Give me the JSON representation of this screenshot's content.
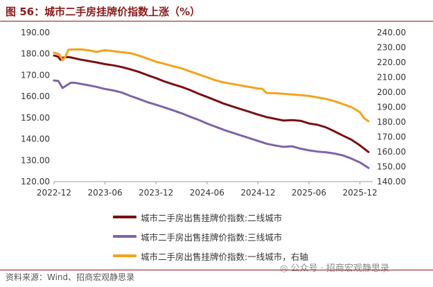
{
  "header": {
    "title": "图 56：城市二手房挂牌价指数上涨（%）"
  },
  "footer": {
    "source": "资料来源：Wind、招商宏观静思录",
    "watermark": "◎ 公众号 · 招商宏观静思录"
  },
  "chart_data": {
    "type": "line",
    "title": "城市二手房挂牌价指数上涨（%）",
    "x_ticks": [
      "2022-12",
      "2023-06",
      "2023-12",
      "2024-06",
      "2024-12",
      "2025-06",
      "2025-12"
    ],
    "x_range": [
      "2022-12",
      "2026-01"
    ],
    "ylim_left": [
      120,
      190
    ],
    "ylim_right": [
      140,
      240
    ],
    "y_ticks_left": [
      "190.00",
      "180.00",
      "170.00",
      "160.00",
      "150.00",
      "140.00",
      "130.00",
      "120.00"
    ],
    "y_ticks_right": [
      "240.00",
      "230.00",
      "220.00",
      "210.00",
      "200.00",
      "190.00",
      "180.00",
      "170.00",
      "160.00",
      "150.00",
      "140.00"
    ],
    "colors": {
      "series_1": "#7B0F13",
      "series_2": "#7E63A8",
      "series_3": "#F5A21B"
    },
    "series": [
      {
        "name": "城市二手房出售挂牌价指数:二线城市",
        "axis": "left",
        "x": [
          0,
          0.25,
          0.5,
          0.75,
          1.0,
          1.5,
          2,
          3,
          4,
          5,
          6,
          7,
          8,
          9,
          10,
          11,
          12,
          13,
          14,
          15,
          16,
          17,
          18,
          19,
          20,
          21,
          22,
          23,
          24,
          25,
          26,
          27,
          28,
          29,
          30,
          31,
          32,
          33,
          34,
          35,
          36,
          37
        ],
        "values": [
          179.2,
          179.0,
          178.6,
          177.2,
          178.2,
          178.5,
          178.3,
          177.4,
          176.7,
          176.0,
          175.2,
          174.6,
          173.8,
          172.7,
          171.5,
          170.0,
          168.6,
          167.0,
          165.7,
          164.5,
          163.0,
          161.3,
          159.8,
          158.2,
          156.6,
          155.3,
          154.0,
          152.8,
          151.5,
          150.3,
          149.5,
          148.7,
          148.9,
          148.6,
          147.3,
          146.7,
          145.5,
          143.6,
          141.6,
          139.7,
          137.0,
          133.9
        ]
      },
      {
        "name": "城市二手房出售挂牌价指数:三线城市",
        "axis": "left",
        "x": [
          0,
          0.5,
          1.0,
          1.5,
          2,
          2.5,
          3,
          4,
          5,
          6,
          7,
          8,
          9,
          10,
          11,
          12,
          13,
          14,
          15,
          16,
          17,
          18,
          19,
          20,
          21,
          22,
          23,
          24,
          25,
          26,
          27,
          28,
          29,
          30,
          31,
          32,
          33,
          34,
          35,
          36,
          37
        ],
        "values": [
          167.5,
          167.3,
          164.0,
          165.3,
          166.5,
          166.4,
          166.0,
          165.3,
          164.5,
          163.5,
          162.8,
          161.8,
          160.2,
          158.8,
          157.3,
          156.1,
          154.8,
          153.5,
          152.1,
          150.5,
          149.0,
          147.3,
          145.8,
          144.3,
          143.0,
          141.7,
          140.4,
          139.1,
          137.8,
          137.0,
          136.3,
          136.6,
          135.5,
          134.7,
          134.1,
          133.8,
          133.2,
          132.3,
          130.8,
          129.0,
          126.4
        ]
      },
      {
        "name": "城市二手房出售挂牌价指数:一线城市，右轴",
        "axis": "right",
        "x": [
          0,
          0.6,
          1.0,
          1.3,
          1.7,
          2.0,
          3,
          4,
          5,
          6,
          7,
          8,
          9,
          10,
          11,
          12,
          13,
          14,
          15,
          16,
          17,
          18,
          19,
          20,
          21,
          22,
          23,
          24,
          24.5,
          25,
          26,
          27,
          28,
          29,
          30,
          31,
          32,
          33,
          34,
          35,
          36,
          36.5,
          37
        ],
        "values": [
          226.5,
          225.5,
          221.5,
          223.5,
          228.5,
          228.6,
          228.8,
          228.2,
          227.0,
          228.2,
          227.5,
          226.8,
          226.2,
          224.5,
          222.5,
          220.5,
          219.0,
          217.5,
          216.0,
          214.0,
          212.0,
          210.0,
          208.0,
          206.5,
          205.5,
          204.5,
          203.5,
          202.5,
          202.3,
          199.5,
          199.3,
          199.0,
          198.5,
          198.0,
          197.5,
          196.5,
          195.5,
          194.0,
          192.0,
          190.0,
          186.5,
          182.5,
          180.5
        ]
      }
    ]
  }
}
